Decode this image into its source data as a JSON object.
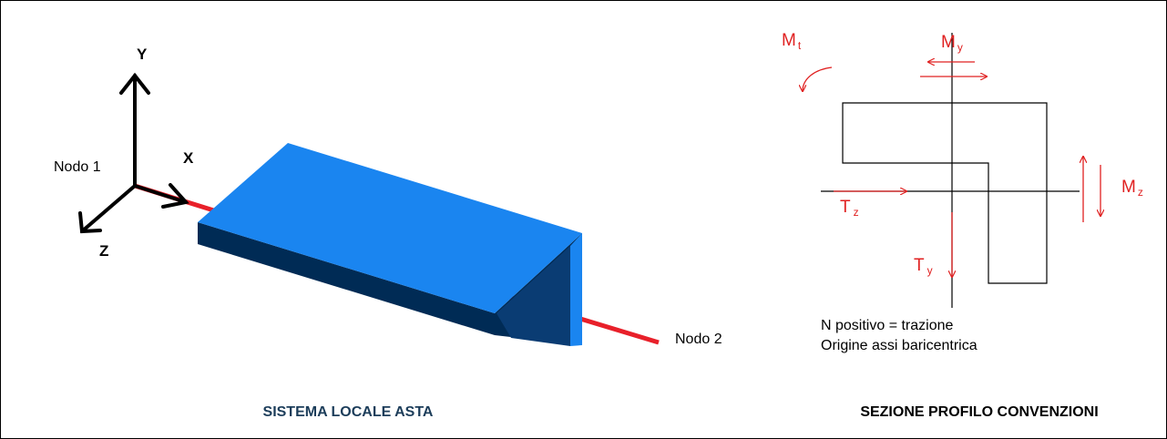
{
  "left_panel": {
    "caption": "SISTEMA LOCALE ASTA",
    "axis_y": "Y",
    "axis_x": "X",
    "axis_z": "Z",
    "node1": "Nodo 1",
    "node2": "Nodo 2",
    "colors": {
      "beam_top": "#1a85f0",
      "beam_side": "#002b55",
      "member_axis": "#e8202a",
      "caption": "#1c3d5a"
    }
  },
  "right_panel": {
    "caption": "SEZIONE PROFILO CONVENZIONI",
    "Mt": {
      "main": "M",
      "sub": "t"
    },
    "My": {
      "main": "M",
      "sub": "y"
    },
    "Mz": {
      "main": "M",
      "sub": "z"
    },
    "Tz": {
      "main": "T",
      "sub": "z"
    },
    "Ty": {
      "main": "T",
      "sub": "y"
    },
    "note1": "N positivo = trazione",
    "note2": "Origine assi baricentrica",
    "colors": {
      "forces": "#e02020"
    }
  }
}
